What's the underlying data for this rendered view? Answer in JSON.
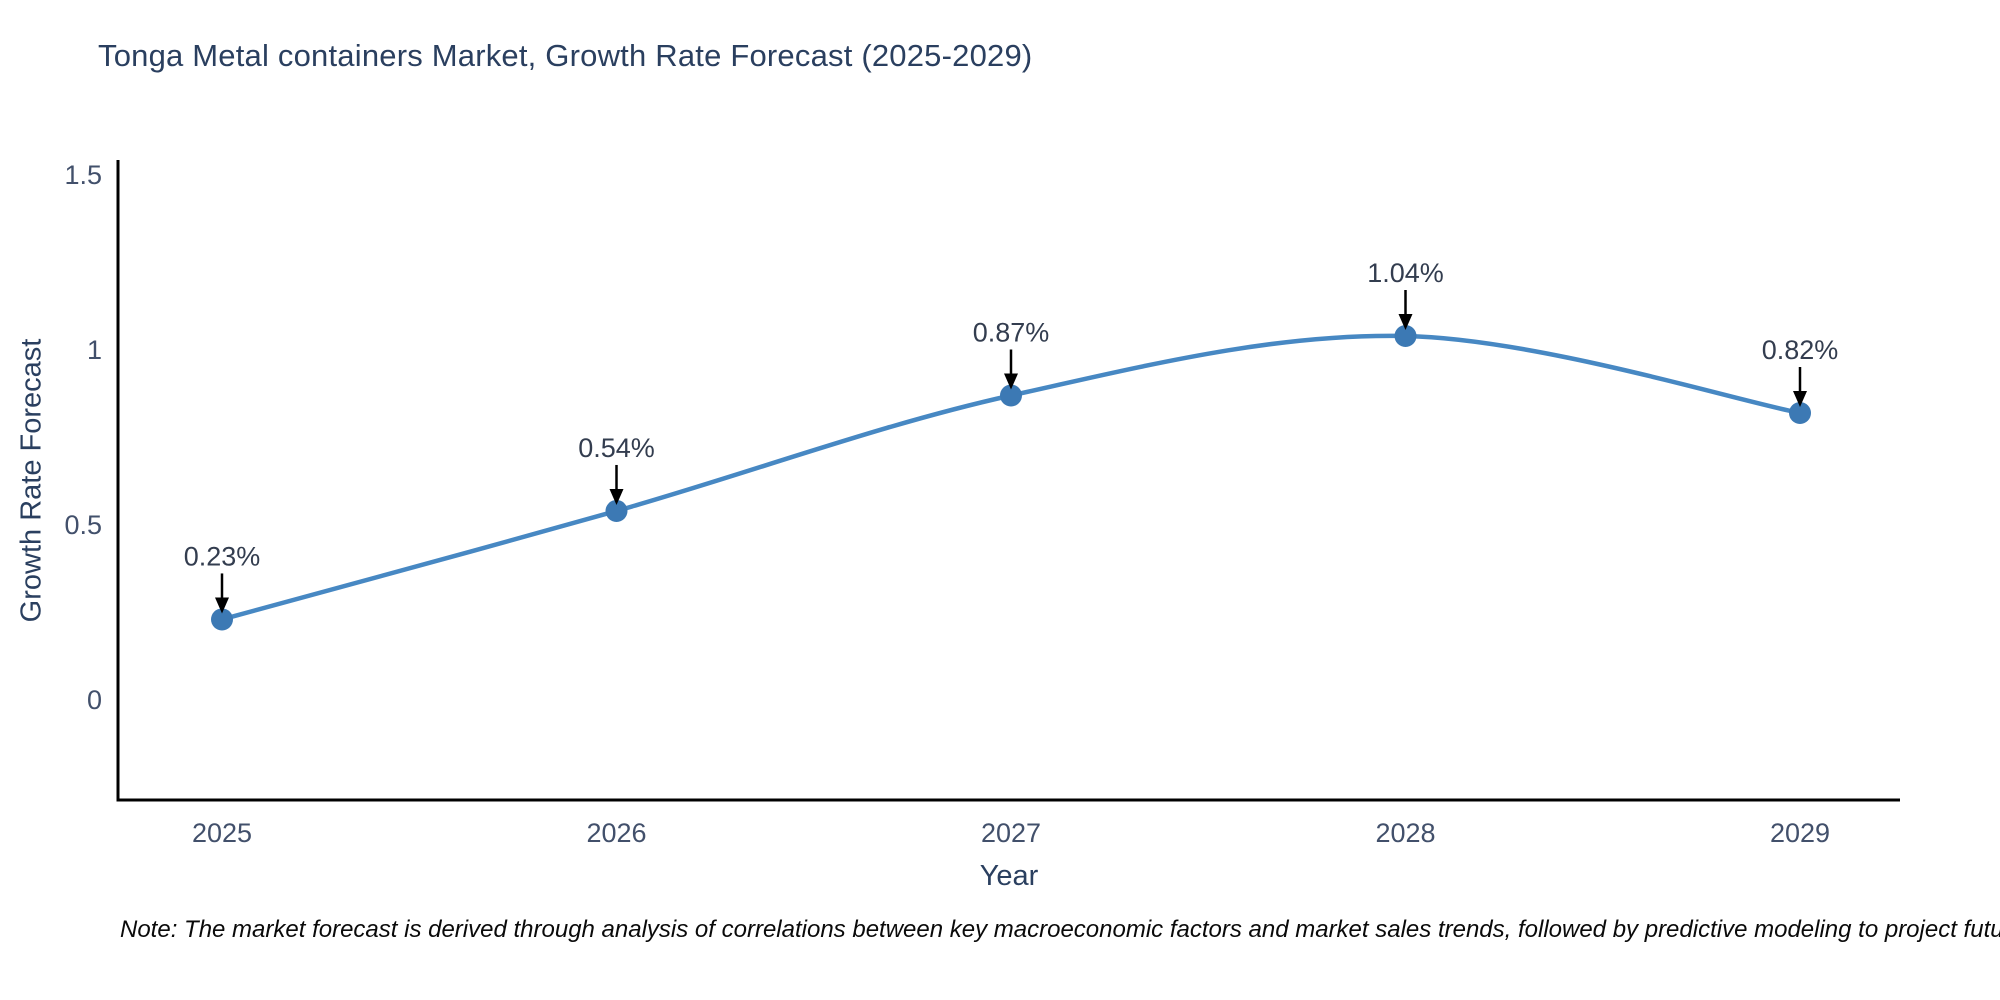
{
  "title": "Tonga Metal containers Market, Growth Rate Forecast (2025-2029)",
  "note": "Note: The market forecast is derived through analysis of correlations between key macroeconomic factors and market sales trends, followed by predictive modeling to project future sales",
  "chart_data": {
    "type": "line",
    "title": "Tonga Metal containers Market, Growth Rate Forecast (2025-2029)",
    "categories": [
      "2025",
      "2026",
      "2027",
      "2028",
      "2029"
    ],
    "series": [
      {
        "name": "Growth Rate Forecast",
        "values": [
          0.23,
          0.54,
          0.87,
          1.04,
          0.82
        ]
      }
    ],
    "point_labels": [
      "0.23%",
      "0.54%",
      "0.87%",
      "1.04%",
      "0.82%"
    ],
    "xlabel": "Year",
    "ylabel": "Growth Rate Forecast",
    "yticks": [
      0,
      0.5,
      1,
      1.5
    ],
    "ylim": [
      -0.286,
      1.543
    ],
    "grid": false,
    "legend": false,
    "smooth": true,
    "annotation_arrows": true
  },
  "colors": {
    "background": "#ffffff",
    "title": "#2a3f5f",
    "axis_line": "#000000",
    "tick_label": "#42506b",
    "annotation_text": "#333d4f",
    "annotation_arrow": "#000000",
    "line": "#4788c3",
    "marker": "#3c79b4"
  }
}
